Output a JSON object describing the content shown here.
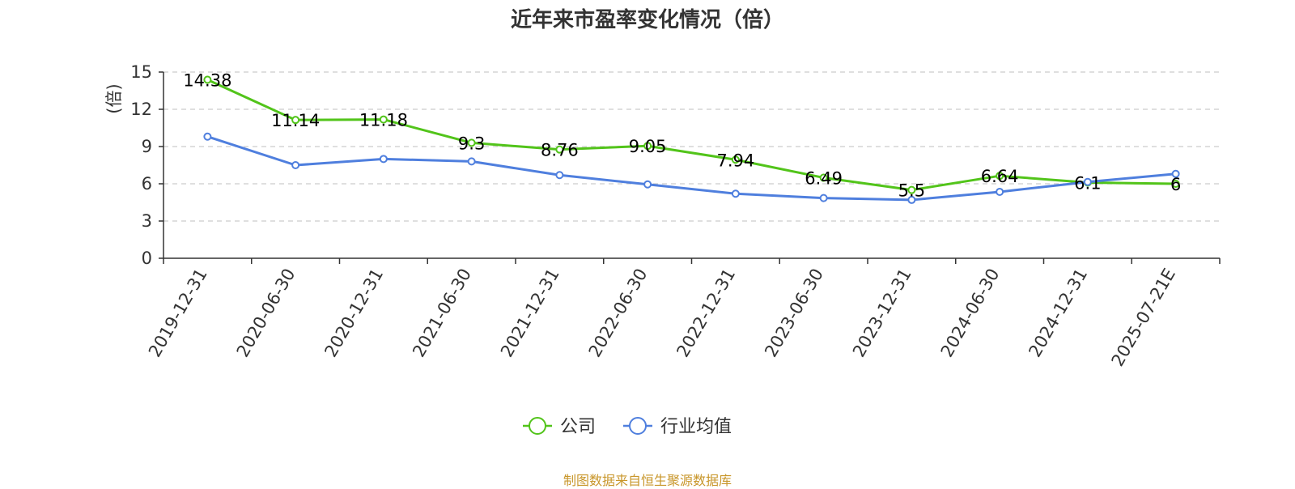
{
  "chart_data": {
    "type": "line",
    "title": "近年来市盈率变化情况（倍）",
    "ylabel": "(倍)",
    "xlabel": "",
    "ylim": [
      0,
      15
    ],
    "yticks": [
      0,
      3,
      6,
      9,
      12,
      15
    ],
    "grid": true,
    "legend_position": "bottom-center",
    "categories": [
      "2019-12-31",
      "2020-06-30",
      "2020-12-31",
      "2021-06-30",
      "2021-12-31",
      "2022-06-30",
      "2022-12-31",
      "2023-06-30",
      "2023-12-31",
      "2024-06-30",
      "2024-12-31",
      "2025-07-21E"
    ],
    "series": [
      {
        "name": "公司",
        "color": "#52c41a",
        "show_labels": true,
        "values": [
          14.38,
          11.14,
          11.18,
          9.3,
          8.76,
          9.05,
          7.94,
          6.49,
          5.5,
          6.64,
          6.1,
          6
        ]
      },
      {
        "name": "行业均值",
        "color": "#4f7fde",
        "show_labels": false,
        "values": [
          9.8,
          7.5,
          8.0,
          7.8,
          6.7,
          5.95,
          5.2,
          4.85,
          4.7,
          5.35,
          6.15,
          6.8
        ]
      }
    ],
    "source": "制图数据来自恒生聚源数据库"
  },
  "colors": {
    "ylabel": "#e8312f",
    "source": "#c8962a",
    "grid": "#cccccc",
    "axis": "#333333"
  }
}
